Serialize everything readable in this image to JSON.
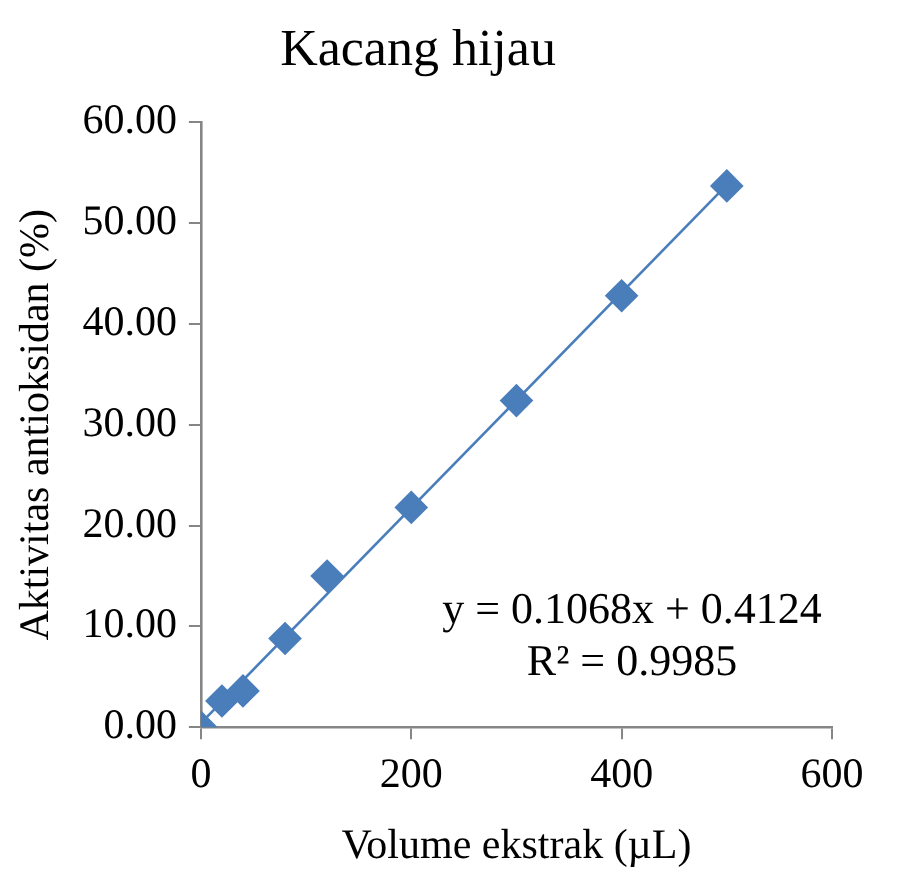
{
  "chart_data": {
    "type": "scatter",
    "title": "Kacang hijau",
    "xlabel": "Volume ekstrak (µL)",
    "ylabel": "Aktivitas antioksidan (%)",
    "x": [
      0,
      20,
      40,
      80,
      120,
      200,
      300,
      400,
      500
    ],
    "series": [
      {
        "type": "scatter",
        "color": "#4a7ebb",
        "marker": "diamond",
        "values": [
          0,
          2.6,
          3.6,
          8.8,
          15.0,
          21.8,
          32.4,
          42.8,
          53.7
        ]
      },
      {
        "type": "line",
        "color": "#4a7ebb",
        "marker": "none",
        "x": [
          0,
          500
        ],
        "values": [
          0.4,
          53.8
        ]
      }
    ],
    "annotations": [
      "y = 0.1068x + 0.4124",
      "R² = 0.9985"
    ],
    "xlim": [
      0,
      600
    ],
    "xticks": [
      0,
      200,
      400,
      600
    ],
    "ylim": [
      0,
      60
    ],
    "yticks": [
      {
        "value": 0,
        "label": "0.00"
      },
      {
        "value": 10,
        "label": "10.00"
      },
      {
        "value": 20,
        "label": "20.00"
      },
      {
        "value": 30,
        "label": "30.00"
      },
      {
        "value": 40,
        "label": "40.00"
      },
      {
        "value": 50,
        "label": "50.00"
      },
      {
        "value": 60,
        "label": "60.00"
      }
    ],
    "grid": false,
    "legend": false
  }
}
